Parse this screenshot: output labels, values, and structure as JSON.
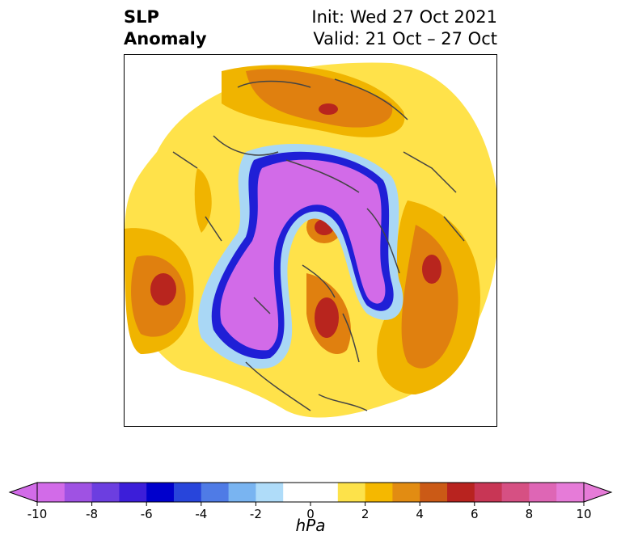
{
  "title": {
    "left_line1": "SLP",
    "left_line2": "Anomaly",
    "right_line1": "Init: Wed 27 Oct 2021",
    "right_line2": "Valid: 21 Oct – 27 Oct"
  },
  "map": {
    "projection": "north-polar-stereographic",
    "colors": {
      "strong_negative": "#d26be8",
      "negative_mid": "#7a46e0",
      "negative_blue": "#1f1fd6",
      "negative_light": "#a9d7f5",
      "positive_light": "#ffe24a",
      "positive_mid": "#f0b400",
      "positive_orange": "#e0800f",
      "positive_red": "#b8251e",
      "coastline": "#444444"
    }
  },
  "colorbar": {
    "unit": "hPa",
    "ticks": [
      "-10",
      "-8",
      "-6",
      "-4",
      "-2",
      "0",
      "2",
      "4",
      "6",
      "8",
      "10"
    ],
    "colors": [
      "#d26be8",
      "#9f52e3",
      "#6c3ee0",
      "#3c1ed9",
      "#0000cc",
      "#2845db",
      "#4f7be6",
      "#79b4f1",
      "#afdcf9",
      "#ffffff",
      "#ffffff",
      "#fde24a",
      "#f5b800",
      "#e28c12",
      "#cb5a16",
      "#b8231f",
      "#c83655",
      "#d65083",
      "#de66b5",
      "#e67bd8"
    ],
    "min_color": "#d26be8",
    "max_color": "#e67bd8"
  }
}
